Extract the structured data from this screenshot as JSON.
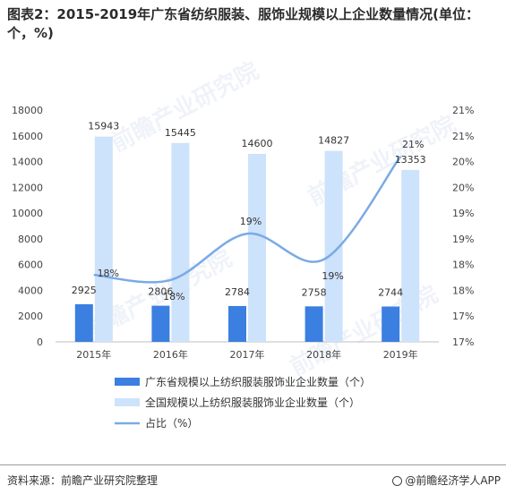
{
  "title": "图表2：2015-2019年广东省纺织服装、服饰业规模以上企业数量情况(单位：个，%)",
  "footer": {
    "source": "资料来源：前瞻产业研究院整理",
    "brand": "@前瞻经济学人APP"
  },
  "colors": {
    "guangdong": "#3b7fe0",
    "national": "#cde2fb",
    "ratio": "#7aaae6"
  },
  "chart_data": {
    "type": "bar",
    "categories": [
      "2015年",
      "2016年",
      "2017年",
      "2018年",
      "2019年"
    ],
    "series": [
      {
        "name": "广东省规模以上纺织服装服饰业企业数量（个）",
        "type": "bar",
        "axis": "left",
        "values": [
          2925,
          2806,
          2784,
          2758,
          2744
        ],
        "labels": [
          "2925",
          "2806",
          "2784",
          "2758",
          "2744"
        ]
      },
      {
        "name": "全国规模以上纺织服装服饰业企业数量（个）",
        "type": "bar",
        "axis": "left",
        "values": [
          15943,
          15445,
          14600,
          14827,
          13353
        ],
        "labels": [
          "15943",
          "15445",
          "14600",
          "14827",
          "13353"
        ]
      },
      {
        "name": "占比（%）",
        "type": "line",
        "axis": "right",
        "values": [
          18.3,
          18.2,
          19.1,
          18.6,
          20.6
        ],
        "labels": [
          "18%",
          "18%",
          "19%",
          "19%",
          "21%"
        ]
      }
    ],
    "y_left": {
      "ylim": [
        0,
        18000
      ],
      "ticks": [
        "0",
        "2000",
        "4000",
        "6000",
        "8000",
        "10000",
        "12000",
        "14000",
        "16000",
        "18000"
      ]
    },
    "y_right": {
      "ylim": [
        17,
        21.5
      ],
      "ticks": [
        "17%",
        "17%",
        "18%",
        "18%",
        "19%",
        "19%",
        "20%",
        "20%",
        "21%",
        "21%"
      ]
    },
    "legend_position": "bottom",
    "grid": false
  }
}
